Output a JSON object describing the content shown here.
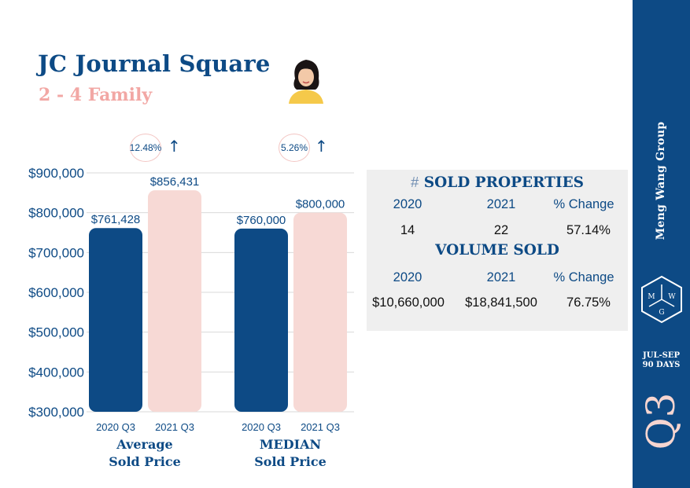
{
  "header": {
    "title": "JC Journal Square",
    "subtitle": "2 - 4 Family"
  },
  "colors": {
    "brand_navy": "#0d4a85",
    "accent_pink": "#f2a7a4",
    "bar_2021": "#f7d9d5",
    "panel_gray": "#efefef"
  },
  "changes": {
    "average_pct": "12.48%",
    "median_pct": "5.26%",
    "arrow_icon": "up-arrow-icon"
  },
  "chart_data": {
    "type": "bar",
    "groups": [
      "Average Sold Price",
      "MEDIAN Sold Price"
    ],
    "categories": [
      "2020 Q3",
      "2021 Q3"
    ],
    "series": [
      {
        "name": "2020 Q3",
        "values": [
          761428,
          760000
        ],
        "labels": [
          "$761,428",
          "$760,000"
        ]
      },
      {
        "name": "2021 Q3",
        "values": [
          856431,
          800000
        ],
        "labels": [
          "$856,431",
          "$800,000"
        ]
      }
    ],
    "yticks": [
      "$900,000",
      "$800,000",
      "$700,000",
      "$600,000",
      "$500,000",
      "$400,000",
      "$300,000"
    ],
    "ylim": [
      300000,
      900000
    ],
    "grid": true,
    "group_labels": [
      [
        "Average",
        "Sold Price"
      ],
      [
        "MEDIAN",
        "Sold Price"
      ]
    ]
  },
  "stats": {
    "sold_heading_hash": "#",
    "sold_heading": "SOLD PROPERTIES",
    "volume_heading": "VOLUME SOLD",
    "col_2020": "2020",
    "col_2021": "2021",
    "col_change": "% Change",
    "sold": {
      "y2020": "14",
      "y2021": "22",
      "change": "57.14%"
    },
    "volume": {
      "y2020": "$10,660,000",
      "y2021": "$18,841,500",
      "change": "76.75%"
    }
  },
  "sidebar": {
    "brand": "Meng Wang Group",
    "logo_letters": [
      "M",
      "W",
      "G"
    ],
    "period_line1": "JUL-SEP",
    "period_line2": "90 DAYS",
    "quarter": "Q3"
  }
}
